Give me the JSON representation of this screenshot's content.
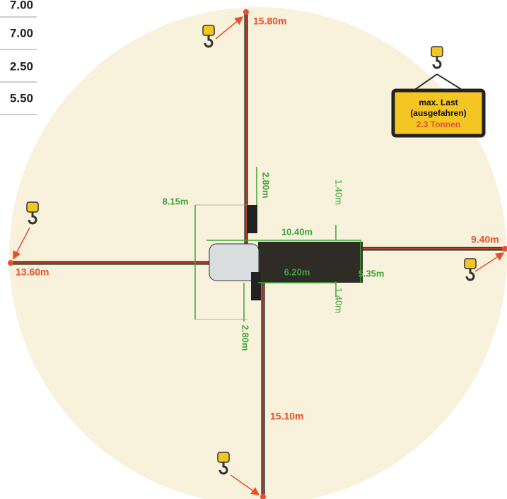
{
  "table": {
    "rows": [
      "7.00",
      "7.00",
      "2.50",
      "5.50"
    ]
  },
  "booms": {
    "top": "15.80m",
    "right": "9.40m",
    "left": "13.60m",
    "bottom": "15.10m"
  },
  "dimensions": {
    "outrigger_top": "2.80m",
    "width": "8.15m",
    "body_length": "10.40m",
    "body_top": "1.40m",
    "cab_to_rear": "6.20m",
    "rear_width": "5.35m",
    "body_bottom": "1.40m",
    "outrigger_bottom": "2.80m"
  },
  "sign": {
    "line1": "max. Last",
    "line2": "(ausgefahren)",
    "load": "2.3 Tonnen"
  }
}
